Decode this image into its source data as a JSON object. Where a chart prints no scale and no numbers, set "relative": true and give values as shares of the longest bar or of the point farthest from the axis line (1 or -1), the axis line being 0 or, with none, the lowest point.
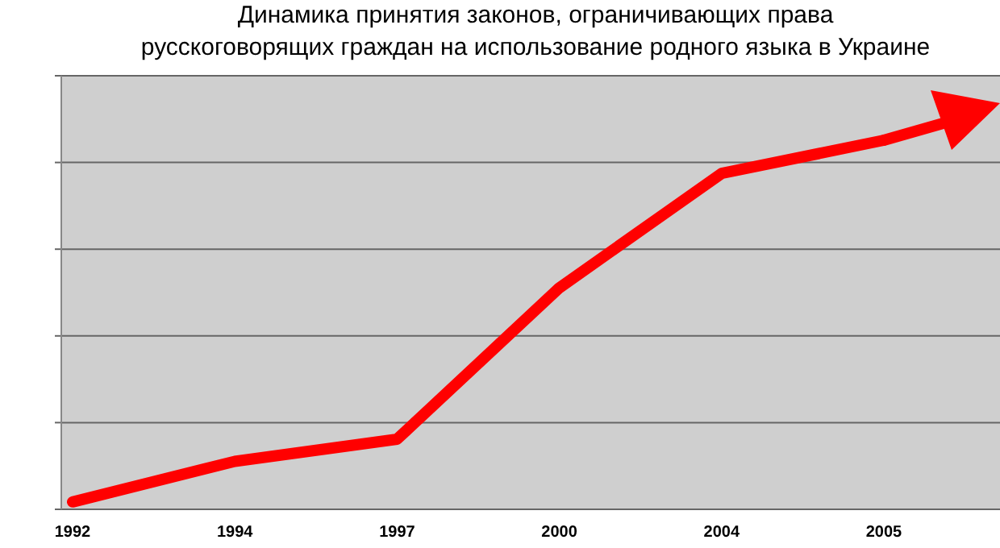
{
  "chart_data": {
    "type": "line",
    "title": "Динамика принятия законов, ограничивающих права\nрусскоговорящих граждан на использование родного языка в Украине",
    "categories": [
      "1992",
      "1994",
      "1997",
      "2000",
      "2004",
      "2005"
    ],
    "series": [
      {
        "color": "#ff0000",
        "values": [
          0.02,
          0.13,
          0.19,
          0.6,
          0.91,
          1
        ]
      }
    ],
    "relative": true,
    "grid": "y",
    "marker": "none",
    "line_style": "solid"
  }
}
